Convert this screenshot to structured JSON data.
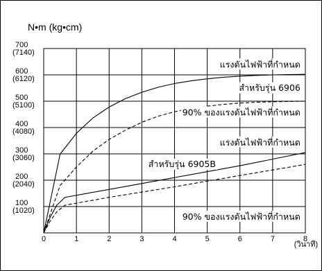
{
  "chart_data": {
    "type": "line",
    "ylabel": "N•m  (kg•cm)",
    "xlim": [
      0,
      8
    ],
    "ylim": [
      0,
      700
    ],
    "grid": true,
    "x_ticks": [
      "0",
      "1",
      "2",
      "3",
      "4",
      "5",
      "6",
      "7",
      "8"
    ],
    "x_unit": "(วินาที)",
    "y_ticks": [
      {
        "main": "700",
        "sub": "(7140)",
        "value": 700
      },
      {
        "main": "600",
        "sub": "(6120)",
        "value": 600
      },
      {
        "main": "500",
        "sub": "(5100)",
        "value": 500
      },
      {
        "main": "400",
        "sub": "(4080)",
        "value": 400
      },
      {
        "main": "300",
        "sub": "(3060)",
        "value": 300
      },
      {
        "main": "200",
        "sub": "(2040)",
        "value": 200
      },
      {
        "main": "100",
        "sub": "(1020)",
        "value": 100
      }
    ],
    "series": [
      {
        "style": "solid",
        "x": [
          0,
          0.5,
          1,
          1.5,
          2,
          2.5,
          3,
          3.5,
          4,
          4.5,
          5,
          5.5,
          6,
          6.5,
          7,
          7.5,
          8
        ],
        "y": [
          0,
          299,
          378,
          436,
          478,
          510,
          534,
          553,
          567,
          577,
          585,
          591,
          595,
          598,
          600,
          601,
          602
        ]
      },
      {
        "style": "dashed",
        "x": [
          0,
          0.5,
          1,
          1.5,
          2,
          2.5,
          3,
          3.5,
          4,
          4.5,
          5,
          5.5,
          6,
          6.5,
          7,
          7.5,
          8
        ],
        "y": [
          0,
          180,
          250,
          310,
          355,
          390,
          420,
          443,
          460,
          472,
          481,
          488,
          493,
          496,
          498,
          499,
          500
        ]
      },
      {
        "style": "solid",
        "x": [
          0,
          0.2,
          0.4,
          0.65,
          2,
          4,
          6,
          8
        ],
        "y": [
          0,
          60,
          105,
          135,
          165,
          210,
          255,
          305
        ]
      },
      {
        "style": "dashed",
        "x": [
          0,
          0.2,
          0.4,
          0.65,
          2,
          4,
          6,
          8
        ],
        "y": [
          0,
          45,
          80,
          105,
          135,
          175,
          218,
          260
        ]
      }
    ],
    "annotations": [
      {
        "text": "แรงดันไฟฟ้าที่กำหนด",
        "x": 7.85,
        "y": 628
      },
      {
        "text": "สำหรับรุ่น 6906",
        "x": 7.85,
        "y": 540
      },
      {
        "text": "90% ของแรงดันไฟฟ้าที่กำหนด",
        "x": 7.85,
        "y": 446
      },
      {
        "text": "แรงดันไฟฟ้าที่กำหนด",
        "x": 7.85,
        "y": 332
      },
      {
        "text": "สำหรับรุ่น 6905B",
        "x": 3.2,
        "y": 250
      },
      {
        "text": "90% ของแรงดันไฟฟ้าที่กำหนด",
        "x": 7.85,
        "y": 50
      }
    ]
  }
}
